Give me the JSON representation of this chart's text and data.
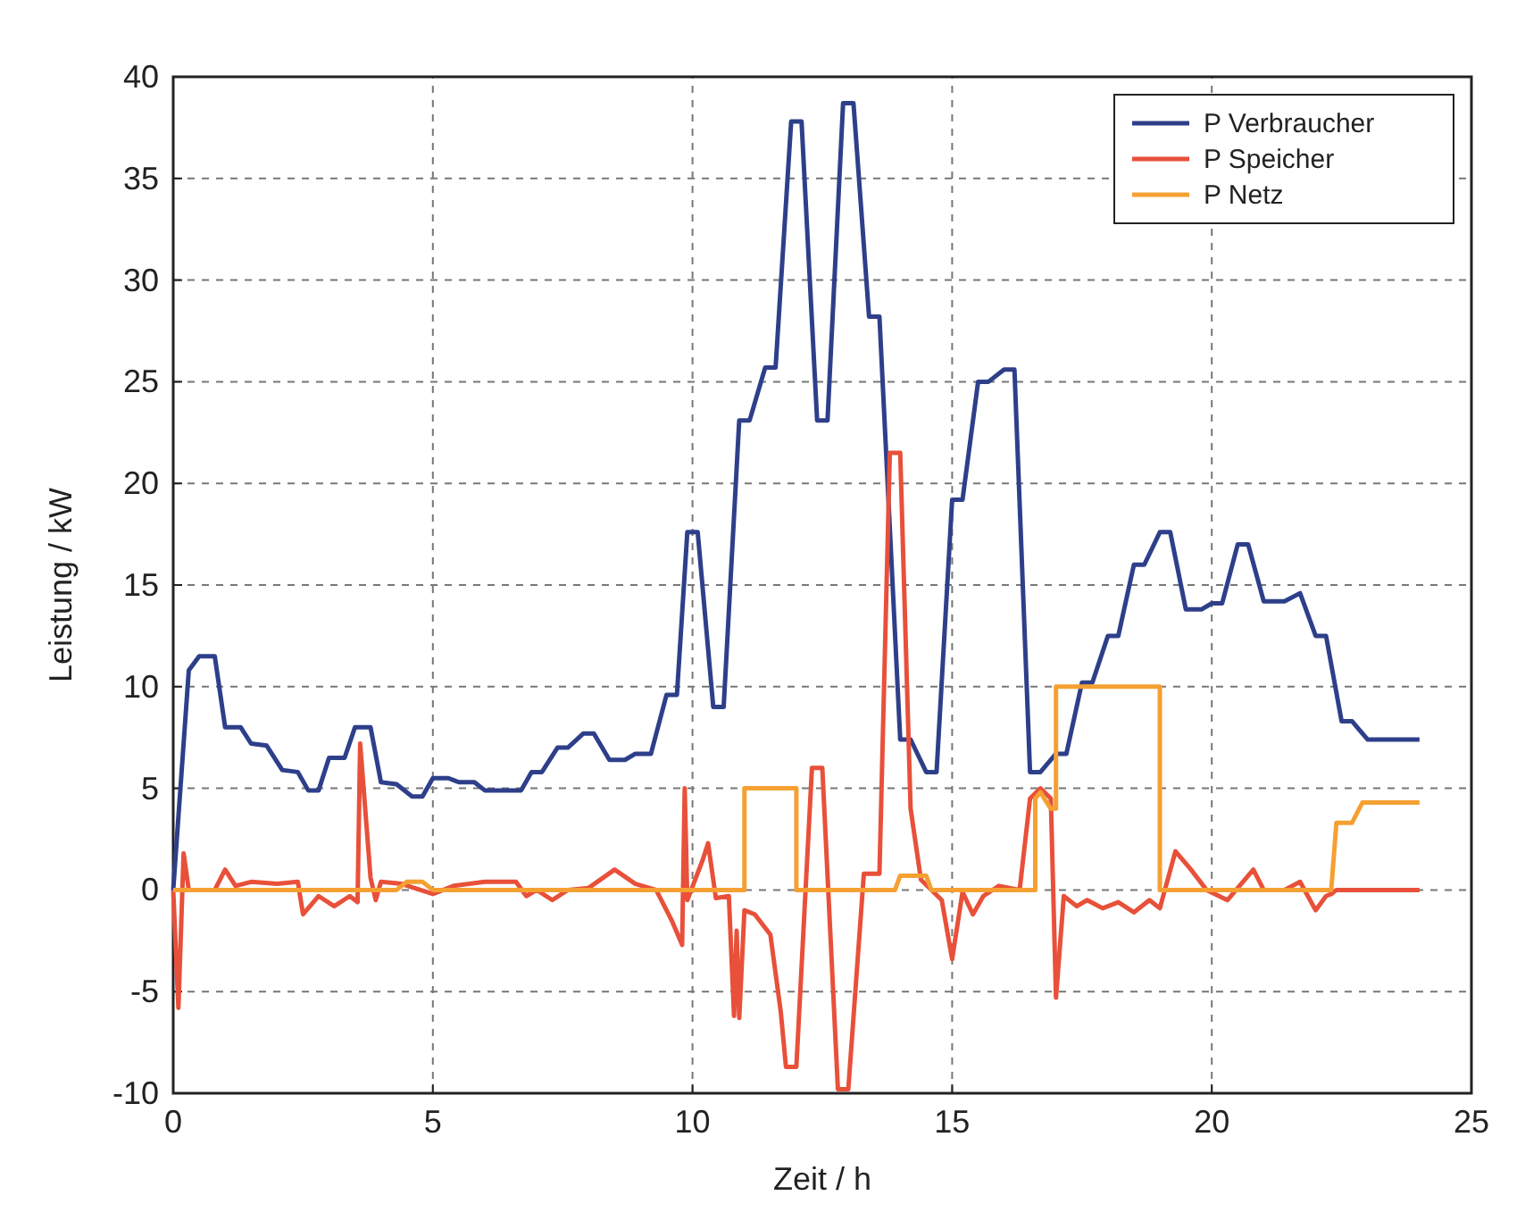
{
  "chart_data": {
    "type": "line",
    "xlabel": "Zeit / h",
    "ylabel": "Leistung / kW",
    "xlim": [
      0,
      25
    ],
    "xticks": [
      0,
      5,
      10,
      15,
      20,
      25
    ],
    "ylim": [
      -10,
      40
    ],
    "yticks": [
      -10,
      -5,
      0,
      5,
      10,
      15,
      20,
      25,
      30,
      35,
      40
    ],
    "grid": true,
    "legend": "top right",
    "line_style": "solid",
    "marker": "none",
    "series": [
      {
        "name": "P Verbraucher",
        "color": "#2e3f8a",
        "x": [
          0,
          0.3,
          0.5,
          0.8,
          1,
          1.3,
          1.5,
          1.8,
          2.1,
          2.4,
          2.6,
          2.8,
          3,
          3.3,
          3.5,
          3.8,
          4,
          4.3,
          4.6,
          4.8,
          5,
          5.3,
          5.5,
          5.8,
          6,
          6.7,
          6.9,
          7.1,
          7.4,
          7.6,
          7.9,
          8.1,
          8.4,
          8.7,
          8.9,
          9.2,
          9.5,
          9.7,
          9.9,
          10.1,
          10.4,
          10.6,
          10.9,
          11.1,
          11.4,
          11.6,
          11.9,
          12.1,
          12.4,
          12.6,
          12.9,
          13.1,
          13.4,
          13.6,
          14,
          14.2,
          14.5,
          14.7,
          15,
          15.2,
          15.5,
          15.7,
          16,
          16.2,
          16.5,
          16.7,
          17,
          17.2,
          17.5,
          17.7,
          18,
          18.2,
          18.5,
          18.7,
          19,
          19.2,
          19.5,
          19.8,
          20,
          20.2,
          20.5,
          20.7,
          21,
          21.4,
          21.7,
          22,
          22.2,
          22.5,
          22.7,
          23,
          24
        ],
        "values": [
          0,
          10.8,
          11.5,
          11.5,
          8,
          8,
          7.2,
          7.1,
          5.9,
          5.8,
          4.9,
          4.9,
          6.5,
          6.5,
          8,
          8,
          5.3,
          5.2,
          4.6,
          4.6,
          5.5,
          5.5,
          5.3,
          5.3,
          4.9,
          4.9,
          5.8,
          5.8,
          7,
          7,
          7.7,
          7.7,
          6.4,
          6.4,
          6.7,
          6.7,
          9.6,
          9.6,
          17.6,
          17.6,
          9,
          9,
          23.1,
          23.1,
          25.7,
          25.7,
          37.8,
          37.8,
          23.1,
          23.1,
          38.7,
          38.7,
          28.2,
          28.2,
          7.4,
          7.4,
          5.8,
          5.8,
          19.2,
          19.2,
          25,
          25,
          25.6,
          25.6,
          5.8,
          5.8,
          6.7,
          6.7,
          10.2,
          10.2,
          12.5,
          12.5,
          16,
          16,
          17.6,
          17.6,
          13.8,
          13.8,
          14.1,
          14.1,
          17,
          17,
          14.2,
          14.2,
          14.6,
          12.5,
          12.5,
          8.3,
          8.3,
          7.4,
          7.4
        ]
      },
      {
        "name": "P Speicher",
        "color": "#e8503a",
        "x": [
          0,
          0.1,
          0.2,
          0.3,
          0.8,
          1,
          1.2,
          1.5,
          2,
          2.4,
          2.5,
          2.8,
          3.1,
          3.4,
          3.55,
          3.6,
          3.8,
          3.9,
          4,
          4.4,
          5,
          5.4,
          6,
          6.6,
          6.8,
          7,
          7.3,
          7.6,
          8,
          8.5,
          8.9,
          9.3,
          9.6,
          9.8,
          9.85,
          9.9,
          10.2,
          10.3,
          10.45,
          10.7,
          10.8,
          10.85,
          10.9,
          11,
          11.2,
          11.5,
          11.7,
          11.8,
          12,
          12.3,
          12.5,
          12.8,
          13,
          13.3,
          13.6,
          13.8,
          14,
          14.2,
          14.4,
          14.8,
          15,
          15.2,
          15.4,
          15.6,
          15.9,
          16.3,
          16.5,
          16.7,
          16.9,
          17,
          17.15,
          17.4,
          17.6,
          17.9,
          18.2,
          18.5,
          18.8,
          19,
          19.3,
          19.6,
          19.9,
          20.3,
          20.8,
          21,
          21.4,
          21.7,
          22,
          22.2,
          22.3,
          22.4,
          24
        ],
        "values": [
          0,
          -5.8,
          1.8,
          0,
          0,
          1,
          0.2,
          0.4,
          0.3,
          0.4,
          -1.2,
          -0.3,
          -0.8,
          -0.3,
          -0.6,
          7.2,
          0.6,
          -0.5,
          0.4,
          0.3,
          -0.2,
          0.2,
          0.4,
          0.4,
          -0.3,
          0,
          -0.5,
          0,
          0.1,
          1,
          0.3,
          0,
          -1.5,
          -2.7,
          5,
          -0.5,
          1.5,
          2.3,
          -0.4,
          -0.3,
          -6.2,
          -2,
          -6.3,
          -1,
          -1.2,
          -2.2,
          -6,
          -8.7,
          -8.7,
          6,
          6,
          -9.8,
          -9.8,
          0.8,
          0.8,
          21.5,
          21.5,
          4,
          0.5,
          -0.5,
          -3.4,
          -0.1,
          -1.2,
          -0.3,
          0.2,
          0,
          4.5,
          5,
          4.5,
          -5.3,
          -0.3,
          -0.8,
          -0.5,
          -0.9,
          -0.6,
          -1.1,
          -0.5,
          -0.9,
          1.9,
          1,
          0,
          -0.5,
          1,
          0,
          0,
          0.4,
          -1,
          -0.3,
          -0.2,
          0,
          0
        ]
      },
      {
        "name": "P Netz",
        "color": "#f5a032",
        "x": [
          0,
          4.3,
          4.5,
          4.8,
          5,
          11,
          11,
          12,
          12,
          13.9,
          14,
          14.5,
          14.6,
          16.6,
          16.6,
          16.7,
          16.9,
          17,
          17,
          19,
          19,
          22.3,
          22.4,
          22.7,
          22.9,
          24
        ],
        "values": [
          0,
          0,
          0.4,
          0.4,
          0,
          0,
          5,
          5,
          0,
          0,
          0.7,
          0.7,
          0,
          0,
          4.5,
          4.8,
          4,
          4,
          10,
          10,
          0,
          0,
          3.3,
          3.3,
          4.3,
          4.3
        ]
      }
    ]
  }
}
